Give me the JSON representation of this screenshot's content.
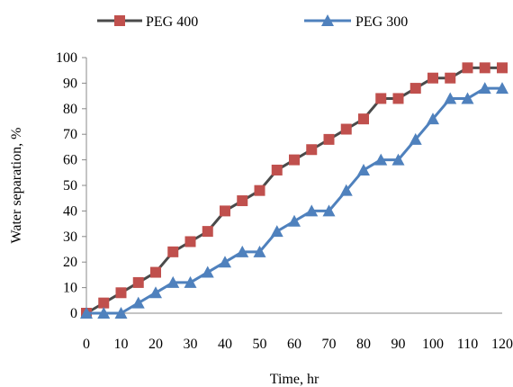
{
  "chart_data": {
    "type": "line",
    "title": "",
    "xlabel": "Time, hr",
    "ylabel": "Water  separation, %",
    "xlim": [
      0,
      120
    ],
    "ylim": [
      0,
      100
    ],
    "xticks": [
      0,
      10,
      20,
      30,
      40,
      50,
      60,
      70,
      80,
      90,
      100,
      110,
      120
    ],
    "yticks": [
      0,
      10,
      20,
      30,
      40,
      50,
      60,
      70,
      80,
      90,
      100
    ],
    "xtick_labels": [
      "0",
      "10",
      "20",
      "30",
      "40",
      "50",
      "60",
      "70",
      "80",
      "90",
      "100",
      "110",
      "120"
    ],
    "ytick_labels": [
      "0",
      "10",
      "20",
      "30",
      "40",
      "50",
      "60",
      "70",
      "80",
      "90",
      "100"
    ],
    "grid": false,
    "legend_position": "top",
    "series": [
      {
        "name": "PEG 400",
        "color": "#C0504D",
        "line_color": "#4A4A4A",
        "marker": "square",
        "x": [
          0,
          5,
          10,
          15,
          20,
          25,
          30,
          35,
          40,
          45,
          50,
          55,
          60,
          65,
          70,
          75,
          80,
          85,
          90,
          95,
          100,
          105,
          110,
          115,
          120
        ],
        "y": [
          0,
          4,
          8,
          12,
          16,
          24,
          28,
          32,
          40,
          44,
          48,
          56,
          60,
          64,
          68,
          72,
          76,
          84,
          84,
          88,
          92,
          92,
          96,
          96,
          96
        ]
      },
      {
        "name": "PEG 300",
        "color": "#4F81BD",
        "line_color": "#4F81BD",
        "marker": "triangle",
        "x": [
          0,
          5,
          10,
          15,
          20,
          25,
          30,
          35,
          40,
          45,
          50,
          55,
          60,
          65,
          70,
          75,
          80,
          85,
          90,
          95,
          100,
          105,
          110,
          115,
          120
        ],
        "y": [
          0,
          0,
          0,
          4,
          8,
          12,
          12,
          16,
          20,
          24,
          24,
          32,
          36,
          40,
          40,
          48,
          56,
          60,
          60,
          68,
          76,
          84,
          84,
          88,
          88
        ]
      }
    ]
  }
}
